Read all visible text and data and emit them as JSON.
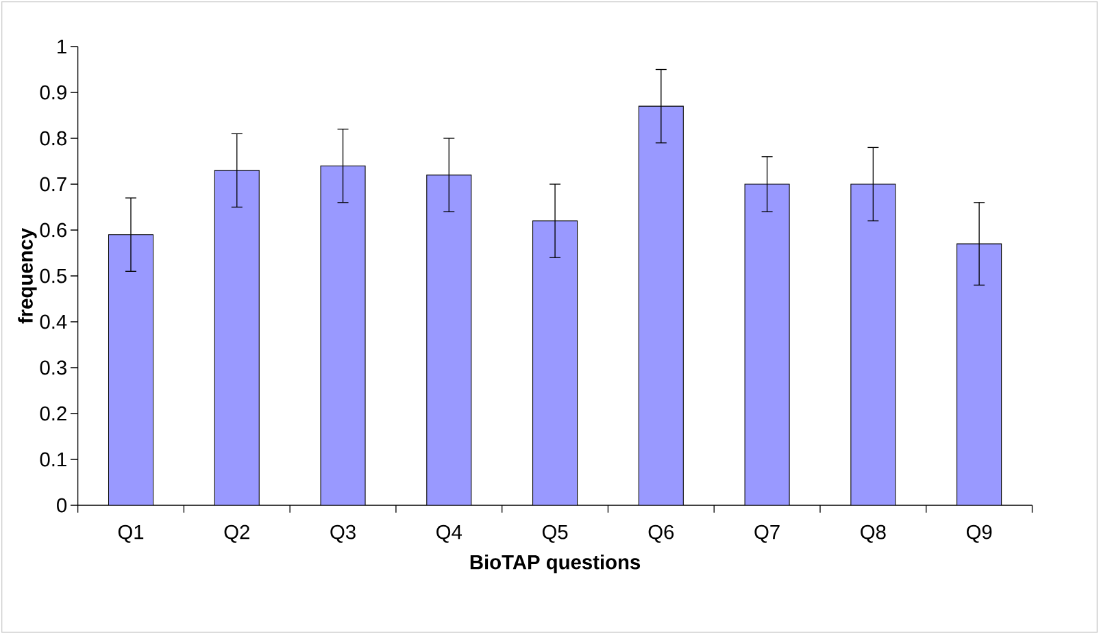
{
  "chart_data": {
    "type": "bar",
    "xlabel": "BioTAP questions",
    "ylabel": "frequency",
    "categories": [
      "Q1",
      "Q2",
      "Q3",
      "Q4",
      "Q5",
      "Q6",
      "Q7",
      "Q8",
      "Q9"
    ],
    "values": [
      0.59,
      0.73,
      0.74,
      0.72,
      0.62,
      0.87,
      0.7,
      0.7,
      0.57
    ],
    "errors": [
      0.08,
      0.08,
      0.08,
      0.08,
      0.08,
      0.08,
      0.06,
      0.08,
      0.09
    ],
    "color": "#9999ff",
    "ylim": [
      0,
      1
    ],
    "yticks": [
      0,
      0.1,
      0.2,
      0.3,
      0.4,
      0.5,
      0.6,
      0.7,
      0.8,
      0.9,
      1
    ]
  }
}
